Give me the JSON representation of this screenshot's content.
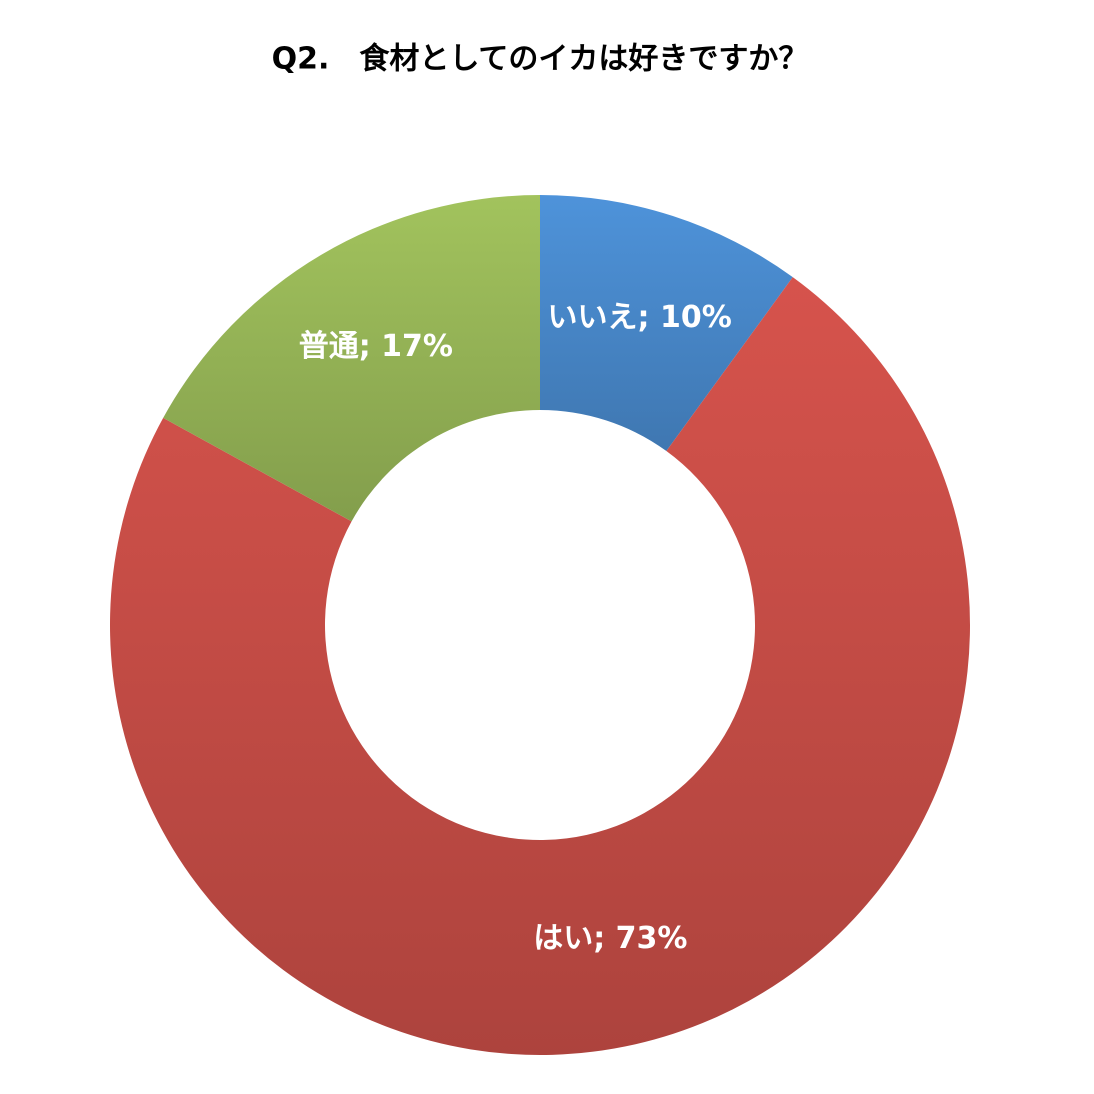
{
  "chart_data": {
    "type": "donut",
    "title": "Q2.　食材としてのイカは好きですか？",
    "categories": [
      "いいえ",
      "はい",
      "普通"
    ],
    "values": [
      10,
      73,
      17
    ],
    "value_labels": [
      "いいえ; 10%",
      "はい; 73%",
      "普通; 17%"
    ],
    "colors": [
      "#4a8cd0",
      "#cc4f48",
      "#9aba59"
    ]
  }
}
